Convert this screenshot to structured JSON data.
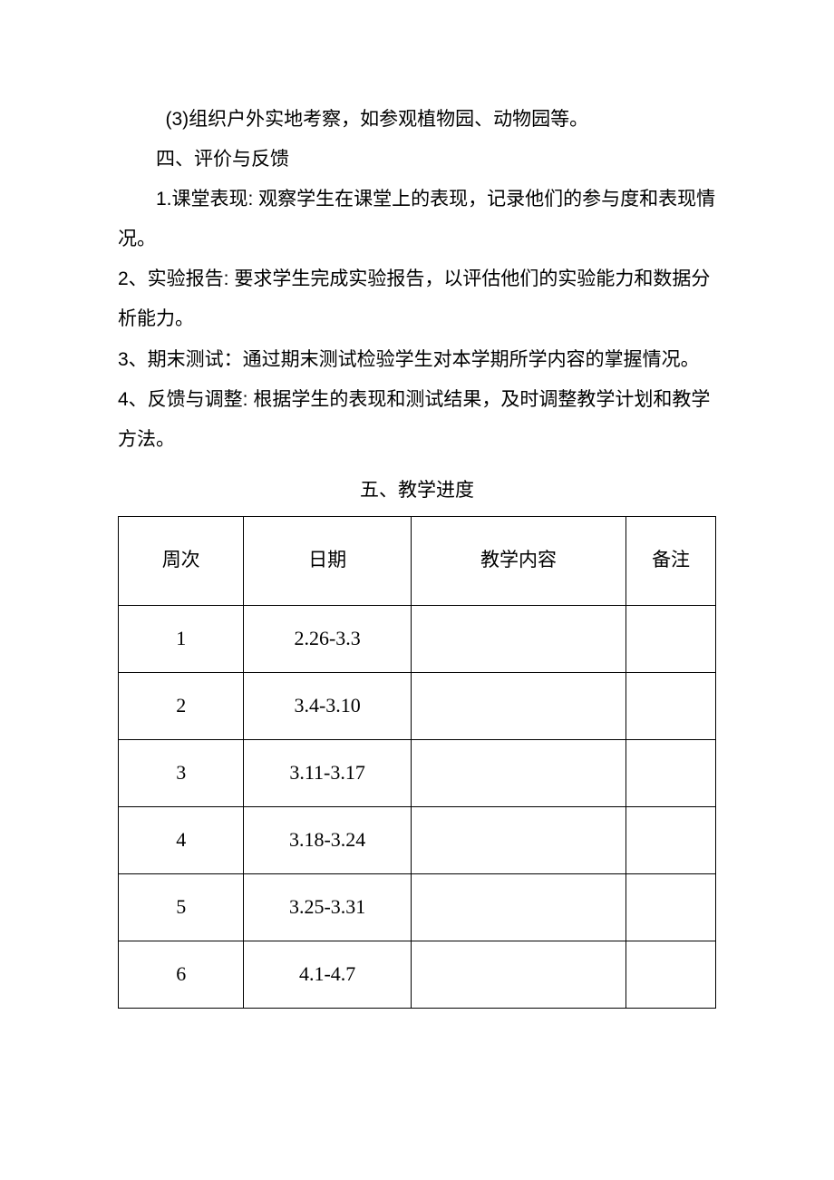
{
  "paragraphs": {
    "p1": "(3)组织户外实地考察，如参观植物园、动物园等。",
    "p2": "四、评价与反馈",
    "p3": "1.课堂表现: 观察学生在课堂上的表现，记录他们的参与度和表现情况。",
    "p4": "2、实验报告: 要求学生完成实验报告，以评估他们的实验能力和数据分析能力。",
    "p5": "3、期末测试：通过期末测试检验学生对本学期所学内容的掌握情况。",
    "p6": "4、反馈与调整: 根据学生的表现和测试结果，及时调整教学计划和教学方法。"
  },
  "table": {
    "title": "五、教学进度",
    "columns": [
      "周次",
      "日期",
      "教学内容",
      "备注"
    ],
    "column_widths": [
      "21%",
      "28%",
      "36%",
      "15%"
    ],
    "rows": [
      {
        "week": "1",
        "date": "2.26-3.3",
        "content": "",
        "note": ""
      },
      {
        "week": "2",
        "date": "3.4-3.10",
        "content": "",
        "note": ""
      },
      {
        "week": "3",
        "date": "3.11-3.17",
        "content": "",
        "note": ""
      },
      {
        "week": "4",
        "date": "3.18-3.24",
        "content": "",
        "note": ""
      },
      {
        "week": "5",
        "date": "3.25-3.31",
        "content": "",
        "note": ""
      },
      {
        "week": "6",
        "date": "4.1-4.7",
        "content": "",
        "note": ""
      }
    ],
    "border_color": "#000000",
    "background_color": "#ffffff"
  },
  "styling": {
    "body_font": "Microsoft YaHei",
    "numeric_font": "Times New Roman",
    "text_color": "#000000",
    "background_color": "#ffffff",
    "base_fontsize": 21,
    "line_height": 2.1
  }
}
